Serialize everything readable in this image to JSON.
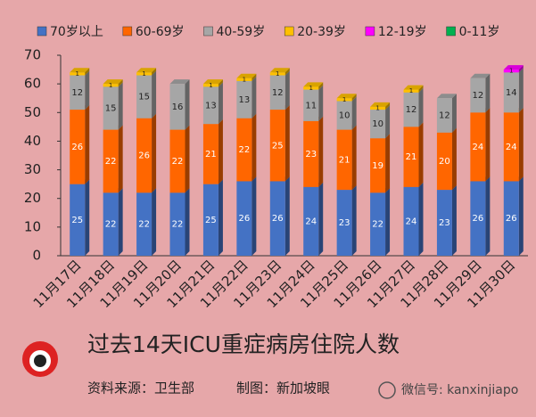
{
  "chart_data": {
    "type": "stacked_bar",
    "title": "过去14天ICU重症病房住院人数",
    "source": "资料来源：卫生部",
    "credit": "制图：新加坡眼",
    "watermark": "微信号: kanxinjiapo",
    "categories": [
      "11月17日",
      "11月18日",
      "11月19日",
      "11月20日",
      "11月21日",
      "11月22日",
      "11月23日",
      "11月24日",
      "11月25日",
      "11月26日",
      "11月27日",
      "11月28日",
      "11月29日",
      "11月30日"
    ],
    "series": [
      {
        "name": "70岁以上",
        "color": "#4472c4",
        "values": [
          25,
          22,
          22,
          22,
          25,
          26,
          26,
          24,
          23,
          22,
          24,
          23,
          26,
          26
        ]
      },
      {
        "name": "60-69岁",
        "color": "#ff6600",
        "values": [
          26,
          22,
          26,
          22,
          21,
          22,
          25,
          23,
          21,
          19,
          21,
          20,
          24,
          24
        ]
      },
      {
        "name": "40-59岁",
        "color": "#a6a6a6",
        "values": [
          12,
          15,
          15,
          16,
          13,
          13,
          12,
          11,
          10,
          10,
          12,
          12,
          12,
          14
        ]
      },
      {
        "name": "20-39岁",
        "color": "#ffc000",
        "values": [
          1,
          1,
          1,
          0,
          1,
          1,
          1,
          1,
          1,
          1,
          1,
          0,
          0,
          0
        ]
      },
      {
        "name": "12-19岁",
        "color": "#ff00ff",
        "values": [
          0,
          0,
          0,
          0,
          0,
          0,
          0,
          0,
          0,
          0,
          0,
          0,
          0,
          1
        ]
      },
      {
        "name": "0-11岁",
        "color": "#00b050",
        "values": [
          0,
          0,
          0,
          0,
          0,
          0,
          0,
          0,
          0,
          0,
          0,
          0,
          0,
          0
        ]
      }
    ],
    "ylim": [
      0,
      70
    ],
    "yticks": [
      0,
      10,
      20,
      30,
      40,
      50,
      60,
      70
    ],
    "grid": false,
    "legend": "top"
  }
}
